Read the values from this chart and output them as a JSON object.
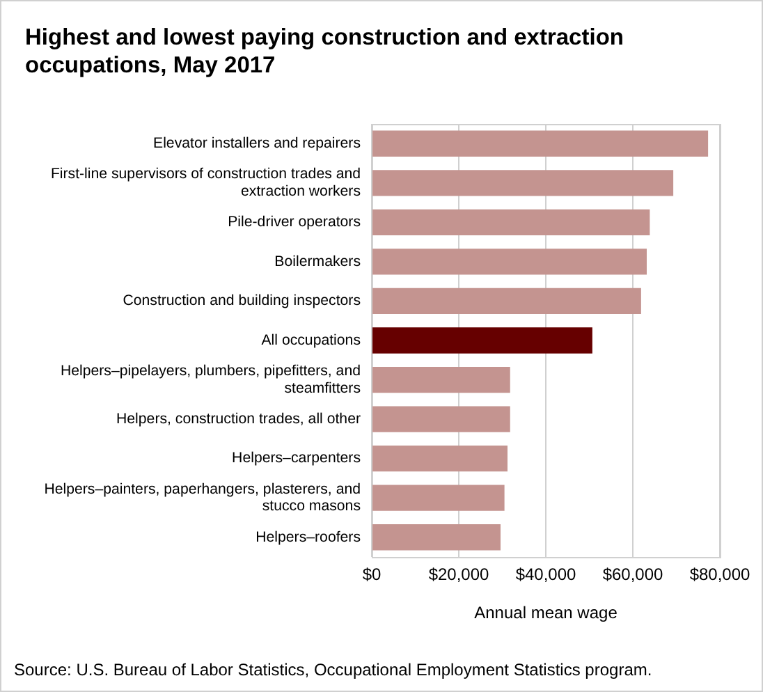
{
  "chart_data": {
    "type": "bar",
    "orientation": "horizontal",
    "title": "Highest and lowest paying construction and extraction occupations, May 2017",
    "xlabel": "Annual mean wage",
    "categories": [
      "Elevator installers and repairers",
      "First-line supervisors of construction trades and extraction workers",
      "Pile-driver operators",
      "Boilermakers",
      "Construction and building inspectors",
      "All occupations",
      "Helpers–pipelayers, plumbers, pipefitters, and steamfitters",
      "Helpers, construction trades, all other",
      "Helpers–carpenters",
      "Helpers–painters, paperhangers, plasterers, and stucco masons",
      "Helpers–roofers"
    ],
    "values": [
      77300,
      69300,
      63900,
      63200,
      61900,
      50700,
      31800,
      31800,
      31200,
      30500,
      29600
    ],
    "colors": [
      "#c49490",
      "#c49490",
      "#c49490",
      "#c49490",
      "#c49490",
      "#660000",
      "#c49490",
      "#c49490",
      "#c49490",
      "#c49490",
      "#c49490"
    ],
    "xlim": [
      0,
      80000
    ],
    "xticks": [
      {
        "value": 0,
        "label": "$0"
      },
      {
        "value": 20000,
        "label": "$20,000"
      },
      {
        "value": 40000,
        "label": "$40,000"
      },
      {
        "value": 60000,
        "label": "$60,000"
      },
      {
        "value": 80000,
        "label": "$80,000"
      }
    ],
    "grid": "x",
    "annotations": [
      "Source: U.S. Bureau of Labor Statistics, Occupational Employment Statistics program."
    ]
  }
}
